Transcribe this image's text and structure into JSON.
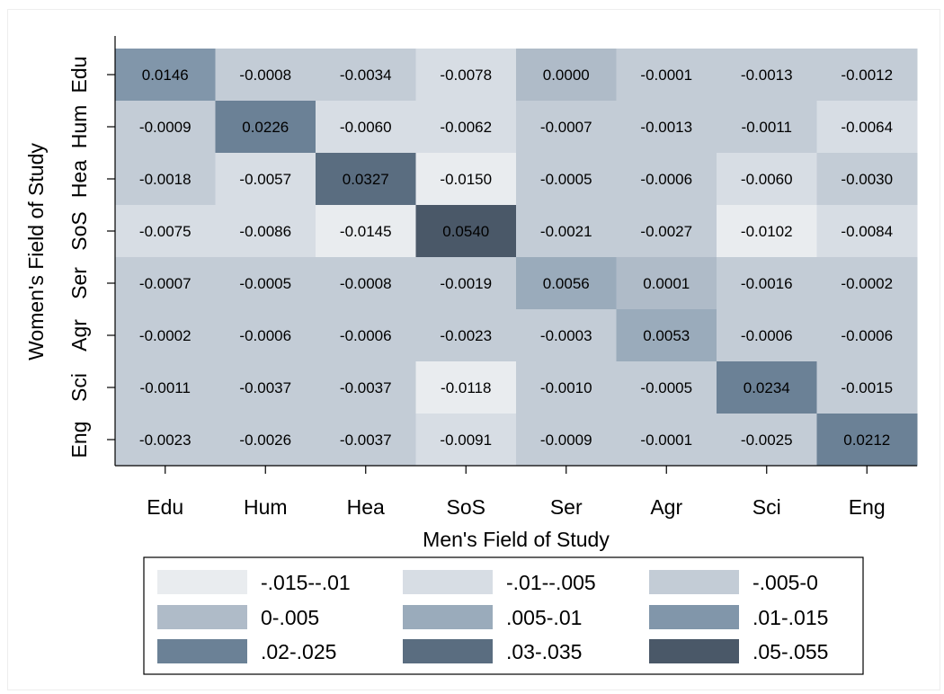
{
  "chart_data": {
    "type": "heatmap",
    "xlabel": "Men's Field of Study",
    "ylabel": "Women's Field of Study",
    "x_categories": [
      "Edu",
      "Hum",
      "Hea",
      "SoS",
      "Ser",
      "Agr",
      "Sci",
      "Eng"
    ],
    "y_categories": [
      "Edu",
      "Hum",
      "Hea",
      "SoS",
      "Ser",
      "Agr",
      "Sci",
      "Eng"
    ],
    "values": [
      [
        "0.0146",
        "-0.0008",
        "-0.0034",
        "-0.0078",
        "0.0000",
        "-0.0001",
        "-0.0013",
        "-0.0012"
      ],
      [
        "-0.0009",
        "0.0226",
        "-0.0060",
        "-0.0062",
        "-0.0007",
        "-0.0013",
        "-0.0011",
        "-0.0064"
      ],
      [
        "-0.0018",
        "-0.0057",
        "0.0327",
        "-0.0150",
        "-0.0005",
        "-0.0006",
        "-0.0060",
        "-0.0030"
      ],
      [
        "-0.0075",
        "-0.0086",
        "-0.0145",
        "0.0540",
        "-0.0021",
        "-0.0027",
        "-0.0102",
        "-0.0084"
      ],
      [
        "-0.0007",
        "-0.0005",
        "-0.0008",
        "-0.0019",
        "0.0056",
        "0.0001",
        "-0.0016",
        "-0.0002"
      ],
      [
        "-0.0002",
        "-0.0006",
        "-0.0006",
        "-0.0023",
        "-0.0003",
        "0.0053",
        "-0.0006",
        "-0.0006"
      ],
      [
        "-0.0011",
        "-0.0037",
        "-0.0037",
        "-0.0118",
        "-0.0010",
        "-0.0005",
        "0.0234",
        "-0.0015"
      ],
      [
        "-0.0023",
        "-0.0026",
        "-0.0037",
        "-0.0091",
        "-0.0009",
        "-0.0001",
        "-0.0025",
        "0.0212"
      ]
    ],
    "legend": {
      "placement": "bottom",
      "entries": [
        {
          "label": "-.015--.01",
          "min": -0.015,
          "max": -0.01,
          "color": "#e9ecef"
        },
        {
          "label": "-.01--.005",
          "min": -0.01,
          "max": -0.005,
          "color": "#d7dde4"
        },
        {
          "label": "-.005-0",
          "min": -0.005,
          "max": 0,
          "color": "#c3ccd6"
        },
        {
          "label": "0-.005",
          "min": 0,
          "max": 0.005,
          "color": "#afbbc8"
        },
        {
          "label": ".005-.01",
          "min": 0.005,
          "max": 0.01,
          "color": "#9aabbb"
        },
        {
          "label": ".01-.015",
          "min": 0.01,
          "max": 0.015,
          "color": "#8196aa"
        },
        {
          "label": ".02-.025",
          "min": 0.02,
          "max": 0.025,
          "color": "#6b8196"
        },
        {
          "label": ".03-.035",
          "min": 0.03,
          "max": 0.035,
          "color": "#5a6d80"
        },
        {
          "label": ".05-.055",
          "min": 0.05,
          "max": 0.055,
          "color": "#4a5868"
        }
      ]
    }
  }
}
